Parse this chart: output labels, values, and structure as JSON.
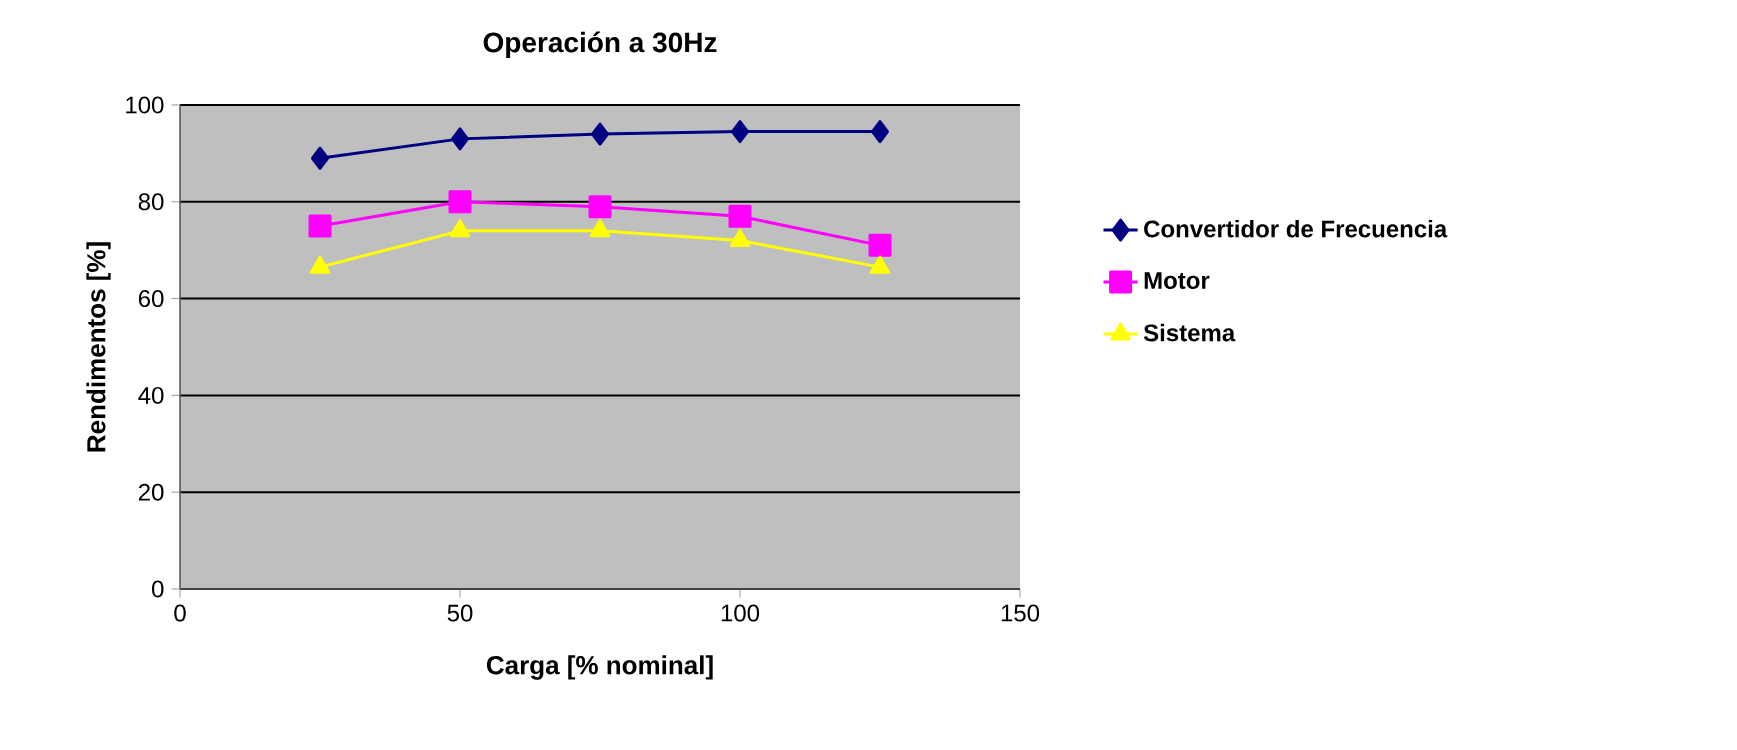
{
  "chart_data": {
    "type": "line",
    "title": "Operación a 30Hz",
    "xlabel": "Carga [% nominal]",
    "ylabel": "Rendimentos [%]",
    "x": [
      25,
      50,
      75,
      100,
      125
    ],
    "series": [
      {
        "name": "Convertidor de Frecuencia",
        "color": "#000080",
        "marker": "diamond",
        "values": [
          89,
          93,
          94,
          94.5,
          94.5
        ]
      },
      {
        "name": "Motor",
        "color": "#ff00ff",
        "marker": "square",
        "values": [
          75,
          80,
          79,
          77,
          71
        ]
      },
      {
        "name": "Sistema",
        "color": "#ffff00",
        "marker": "triangle",
        "values": [
          66.5,
          74,
          74,
          72,
          66.5
        ]
      }
    ],
    "xlim": [
      0,
      150
    ],
    "xticks": [
      0,
      50,
      100,
      150
    ],
    "ylim": [
      0,
      100
    ],
    "yticks": [
      0,
      20,
      40,
      60,
      80,
      100
    ],
    "grid": "y",
    "legend": "right"
  }
}
